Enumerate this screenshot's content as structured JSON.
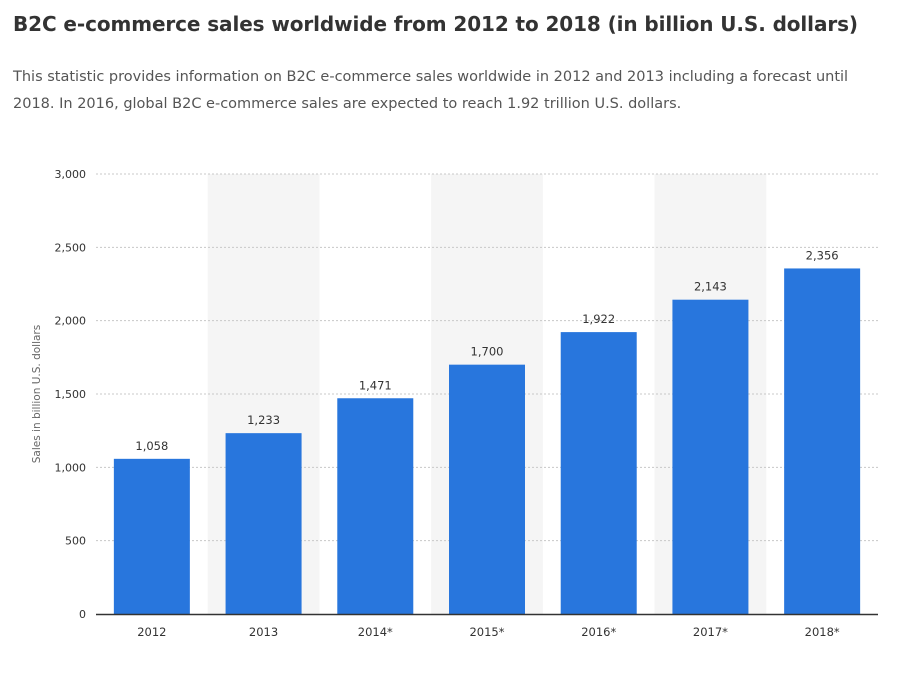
{
  "page": {
    "title": "B2C e-commerce sales worldwide from 2012 to 2018 (in billion U.S. dollars)",
    "description": "This statistic provides information on B2C e-commerce sales worldwide in 2012 and 2013 including a forecast until 2018. In 2016, global B2C e-commerce sales are expected to reach 1.92 trillion U.S. dollars."
  },
  "chart_data": {
    "type": "bar",
    "title": "",
    "xlabel": "",
    "ylabel": "Sales in billion U.S. dollars",
    "categories": [
      "2012",
      "2013",
      "2014*",
      "2015*",
      "2016*",
      "2017*",
      "2018*"
    ],
    "values": [
      1058,
      1233,
      1471,
      1700,
      1922,
      2143,
      2356
    ],
    "value_labels": [
      "1,058",
      "1,233",
      "1,471",
      "1,700",
      "1,922",
      "2,143",
      "2,356"
    ],
    "ylim": [
      0,
      3000
    ],
    "yticks": [
      0,
      500,
      1000,
      1500,
      2000,
      2500,
      3000
    ],
    "ytick_labels": [
      "0",
      "500",
      "1,000",
      "1,500",
      "2,000",
      "2,500",
      "3,000"
    ],
    "grid": true,
    "legend": "none",
    "colors": {
      "bar": "#2876dd",
      "band": "#f5f5f5",
      "grid": "#c8c8c8",
      "axis": "#333333",
      "text": "#333333"
    }
  }
}
